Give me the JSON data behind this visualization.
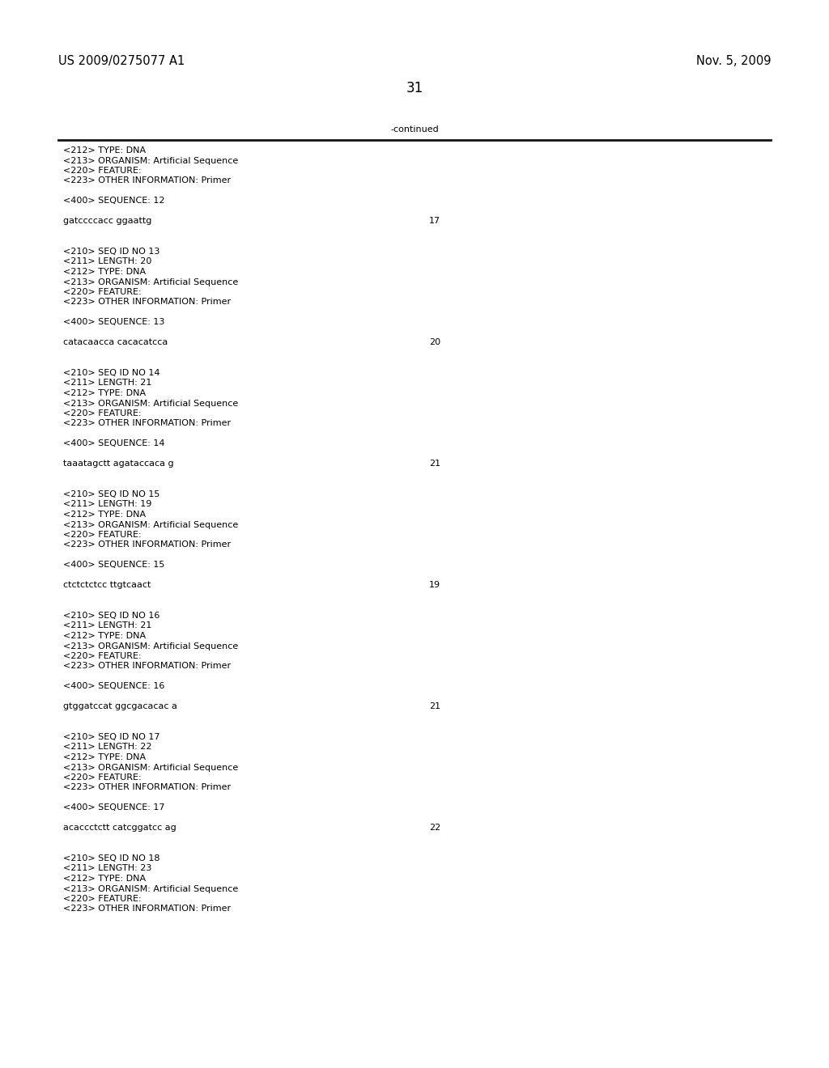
{
  "header_left": "US 2009/0275077 A1",
  "header_right": "Nov. 5, 2009",
  "page_number": "31",
  "continued_label": "-continued",
  "background_color": "#ffffff",
  "text_color": "#000000",
  "font_size_header": 10.5,
  "font_size_body": 8.0,
  "font_size_page": 12,
  "content_lines": [
    {
      "text": "<212> TYPE: DNA",
      "type": "meta"
    },
    {
      "text": "<213> ORGANISM: Artificial Sequence",
      "type": "meta"
    },
    {
      "text": "<220> FEATURE:",
      "type": "meta"
    },
    {
      "text": "<223> OTHER INFORMATION: Primer",
      "type": "meta"
    },
    {
      "text": "",
      "type": "blank"
    },
    {
      "text": "<400> SEQUENCE: 12",
      "type": "meta"
    },
    {
      "text": "",
      "type": "blank"
    },
    {
      "text": "gatccccacc ggaattg",
      "type": "seq",
      "num": "17"
    },
    {
      "text": "",
      "type": "blank"
    },
    {
      "text": "",
      "type": "blank"
    },
    {
      "text": "<210> SEQ ID NO 13",
      "type": "meta"
    },
    {
      "text": "<211> LENGTH: 20",
      "type": "meta"
    },
    {
      "text": "<212> TYPE: DNA",
      "type": "meta"
    },
    {
      "text": "<213> ORGANISM: Artificial Sequence",
      "type": "meta"
    },
    {
      "text": "<220> FEATURE:",
      "type": "meta"
    },
    {
      "text": "<223> OTHER INFORMATION: Primer",
      "type": "meta"
    },
    {
      "text": "",
      "type": "blank"
    },
    {
      "text": "<400> SEQUENCE: 13",
      "type": "meta"
    },
    {
      "text": "",
      "type": "blank"
    },
    {
      "text": "catacaacca cacacatcca",
      "type": "seq",
      "num": "20"
    },
    {
      "text": "",
      "type": "blank"
    },
    {
      "text": "",
      "type": "blank"
    },
    {
      "text": "<210> SEQ ID NO 14",
      "type": "meta"
    },
    {
      "text": "<211> LENGTH: 21",
      "type": "meta"
    },
    {
      "text": "<212> TYPE: DNA",
      "type": "meta"
    },
    {
      "text": "<213> ORGANISM: Artificial Sequence",
      "type": "meta"
    },
    {
      "text": "<220> FEATURE:",
      "type": "meta"
    },
    {
      "text": "<223> OTHER INFORMATION: Primer",
      "type": "meta"
    },
    {
      "text": "",
      "type": "blank"
    },
    {
      "text": "<400> SEQUENCE: 14",
      "type": "meta"
    },
    {
      "text": "",
      "type": "blank"
    },
    {
      "text": "taaatagctt agataccaca g",
      "type": "seq",
      "num": "21"
    },
    {
      "text": "",
      "type": "blank"
    },
    {
      "text": "",
      "type": "blank"
    },
    {
      "text": "<210> SEQ ID NO 15",
      "type": "meta"
    },
    {
      "text": "<211> LENGTH: 19",
      "type": "meta"
    },
    {
      "text": "<212> TYPE: DNA",
      "type": "meta"
    },
    {
      "text": "<213> ORGANISM: Artificial Sequence",
      "type": "meta"
    },
    {
      "text": "<220> FEATURE:",
      "type": "meta"
    },
    {
      "text": "<223> OTHER INFORMATION: Primer",
      "type": "meta"
    },
    {
      "text": "",
      "type": "blank"
    },
    {
      "text": "<400> SEQUENCE: 15",
      "type": "meta"
    },
    {
      "text": "",
      "type": "blank"
    },
    {
      "text": "ctctctctcc ttgtcaact",
      "type": "seq",
      "num": "19"
    },
    {
      "text": "",
      "type": "blank"
    },
    {
      "text": "",
      "type": "blank"
    },
    {
      "text": "<210> SEQ ID NO 16",
      "type": "meta"
    },
    {
      "text": "<211> LENGTH: 21",
      "type": "meta"
    },
    {
      "text": "<212> TYPE: DNA",
      "type": "meta"
    },
    {
      "text": "<213> ORGANISM: Artificial Sequence",
      "type": "meta"
    },
    {
      "text": "<220> FEATURE:",
      "type": "meta"
    },
    {
      "text": "<223> OTHER INFORMATION: Primer",
      "type": "meta"
    },
    {
      "text": "",
      "type": "blank"
    },
    {
      "text": "<400> SEQUENCE: 16",
      "type": "meta"
    },
    {
      "text": "",
      "type": "blank"
    },
    {
      "text": "gtggatccat ggcgacacac a",
      "type": "seq",
      "num": "21"
    },
    {
      "text": "",
      "type": "blank"
    },
    {
      "text": "",
      "type": "blank"
    },
    {
      "text": "<210> SEQ ID NO 17",
      "type": "meta"
    },
    {
      "text": "<211> LENGTH: 22",
      "type": "meta"
    },
    {
      "text": "<212> TYPE: DNA",
      "type": "meta"
    },
    {
      "text": "<213> ORGANISM: Artificial Sequence",
      "type": "meta"
    },
    {
      "text": "<220> FEATURE:",
      "type": "meta"
    },
    {
      "text": "<223> OTHER INFORMATION: Primer",
      "type": "meta"
    },
    {
      "text": "",
      "type": "blank"
    },
    {
      "text": "<400> SEQUENCE: 17",
      "type": "meta"
    },
    {
      "text": "",
      "type": "blank"
    },
    {
      "text": "acaccctctt catcggatcc ag",
      "type": "seq",
      "num": "22"
    },
    {
      "text": "",
      "type": "blank"
    },
    {
      "text": "",
      "type": "blank"
    },
    {
      "text": "<210> SEQ ID NO 18",
      "type": "meta"
    },
    {
      "text": "<211> LENGTH: 23",
      "type": "meta"
    },
    {
      "text": "<212> TYPE: DNA",
      "type": "meta"
    },
    {
      "text": "<213> ORGANISM: Artificial Sequence",
      "type": "meta"
    },
    {
      "text": "<220> FEATURE:",
      "type": "meta"
    },
    {
      "text": "<223> OTHER INFORMATION: Primer",
      "type": "meta"
    }
  ]
}
